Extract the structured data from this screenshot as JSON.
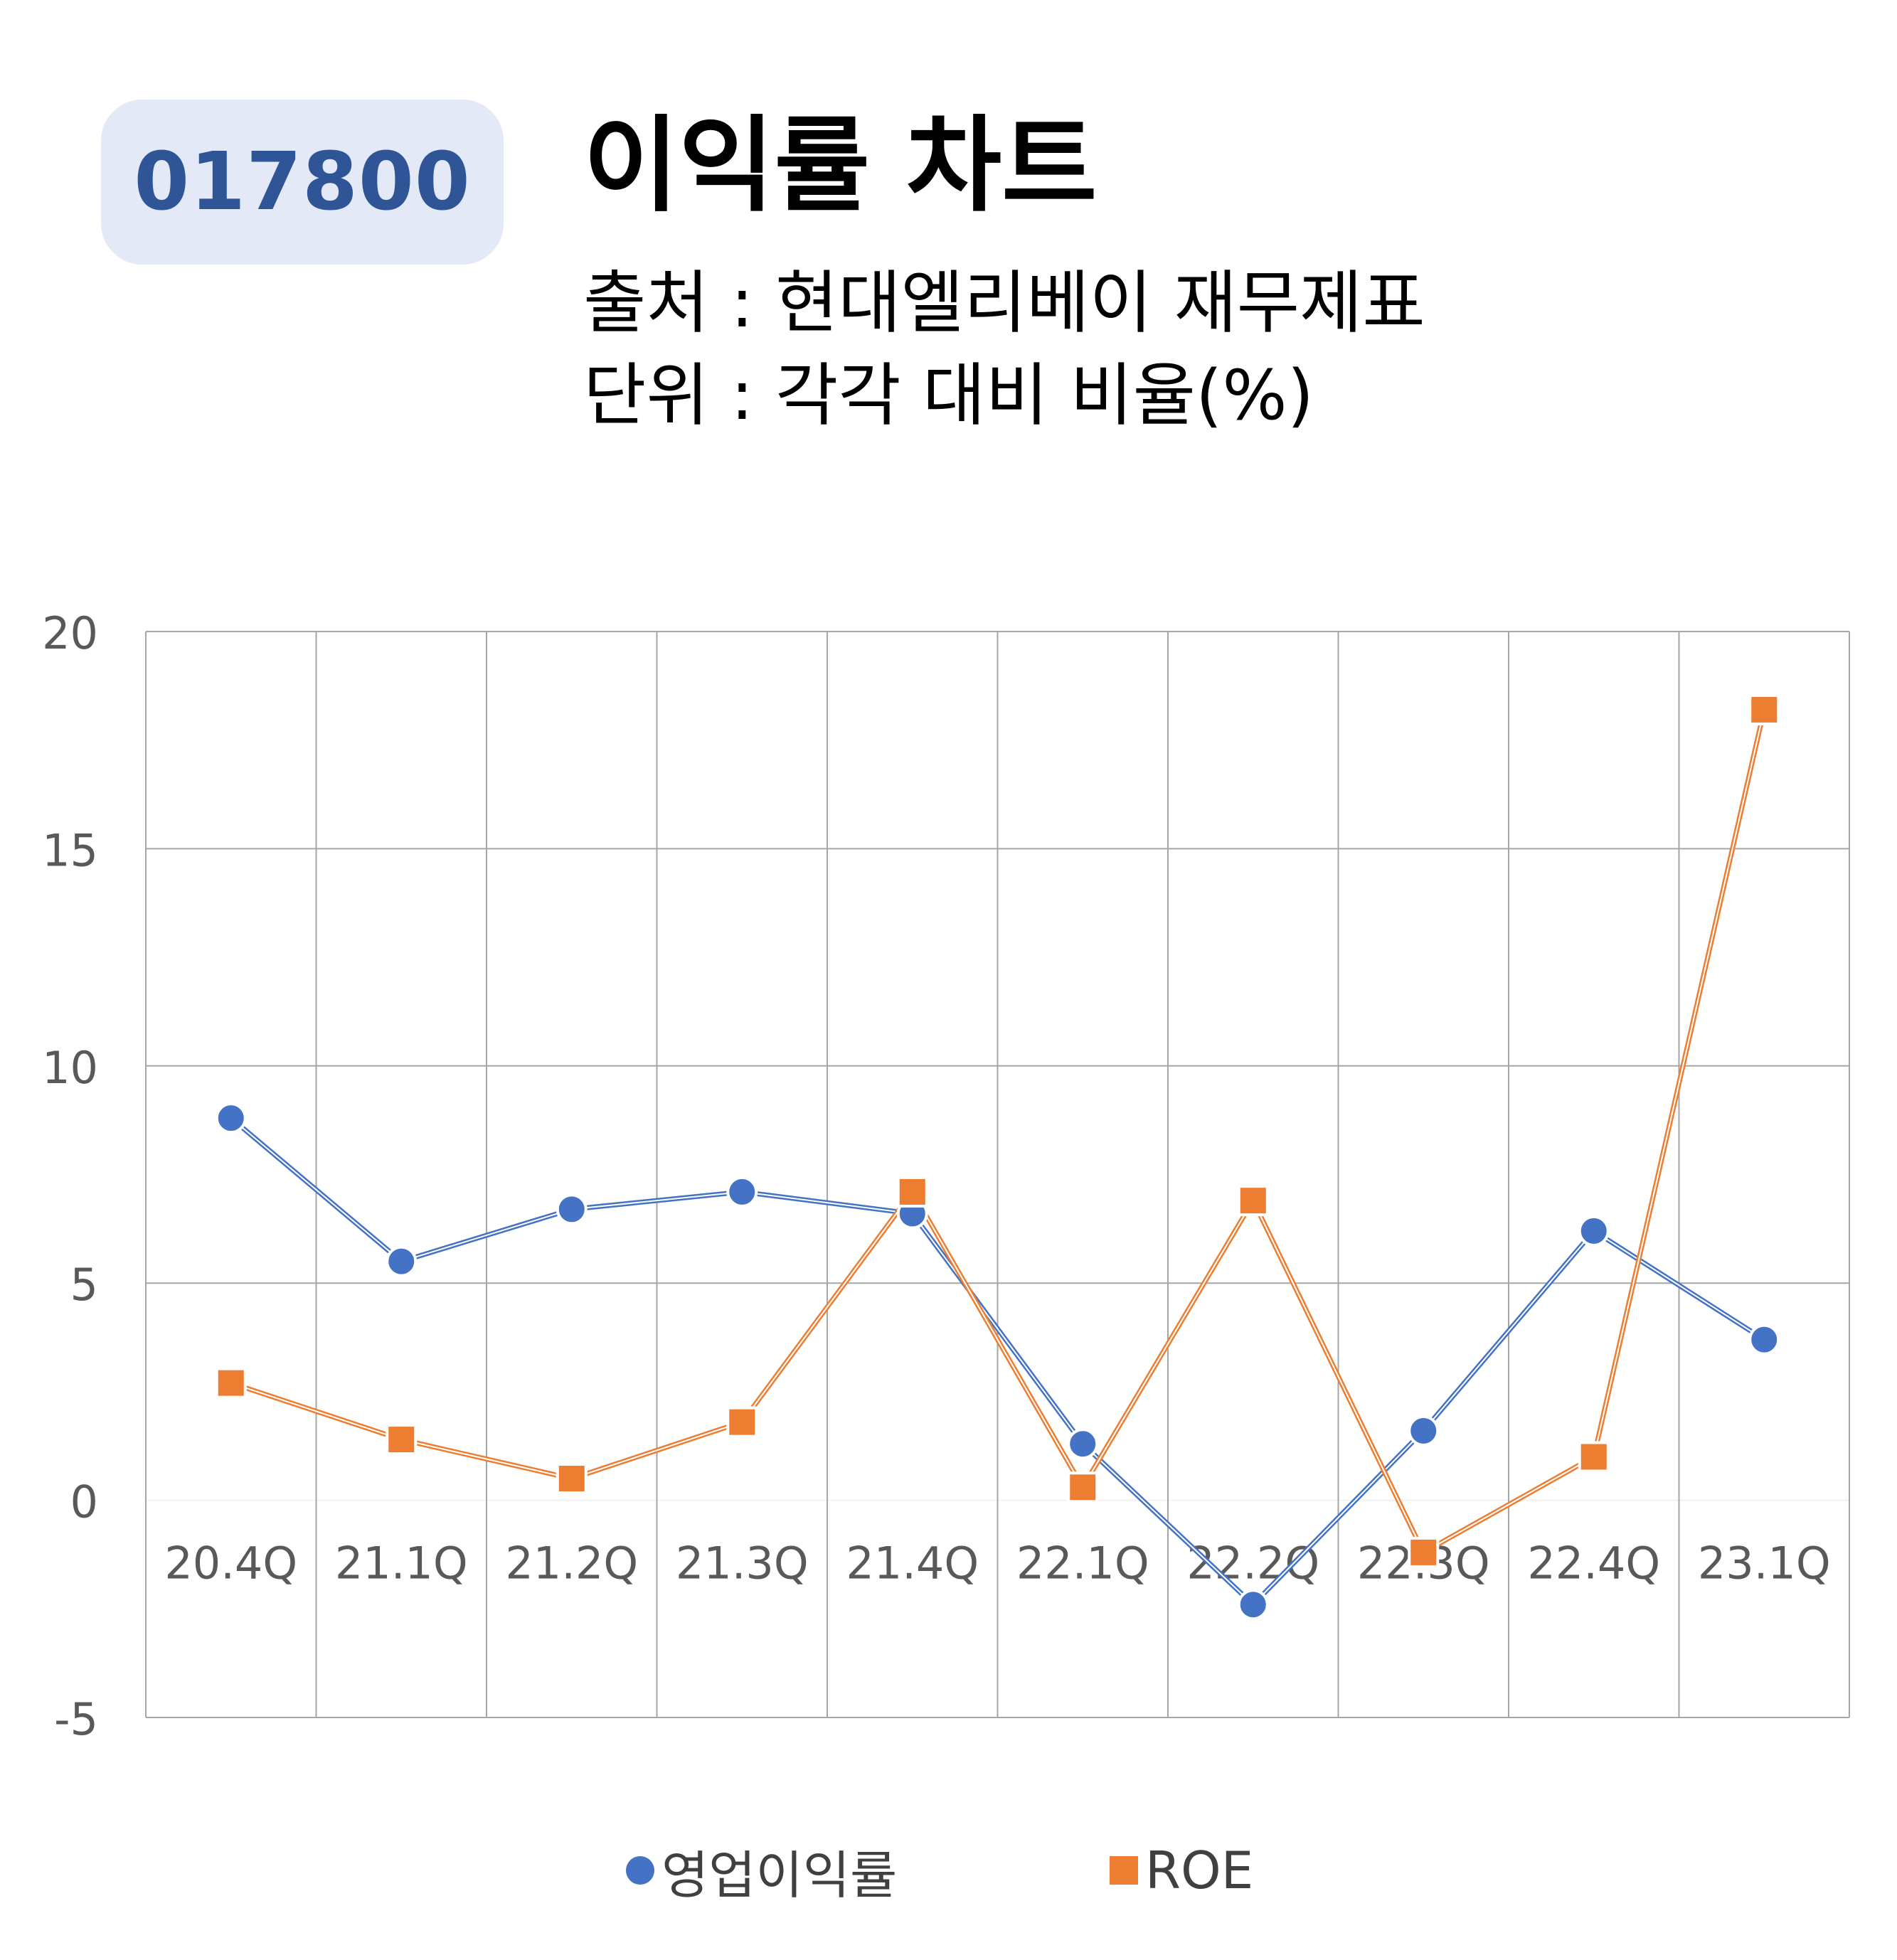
{
  "badge": {
    "ticker": "017800"
  },
  "header": {
    "title": "이익률 차트",
    "source": "출처 : 현대엘리베이 재무제표",
    "unit": "단위 : 각각 대비 비율(%)"
  },
  "chart_data": {
    "type": "line",
    "categories": [
      "20.4Q",
      "21.1Q",
      "21.2Q",
      "21.3Q",
      "21.4Q",
      "22.1Q",
      "22.2Q",
      "22.3Q",
      "22.4Q",
      "23.1Q"
    ],
    "series": [
      {
        "name": "영업이익률",
        "color": "#4472c4",
        "marker": "circle",
        "values": [
          8.8,
          5.5,
          6.7,
          7.1,
          6.6,
          1.3,
          -2.4,
          1.6,
          6.2,
          3.7
        ]
      },
      {
        "name": "ROE",
        "color": "#ed7d31",
        "marker": "square",
        "values": [
          2.7,
          1.4,
          0.5,
          1.8,
          7.1,
          0.3,
          6.9,
          -1.2,
          1.0,
          18.2
        ]
      }
    ],
    "ylim": [
      -5,
      20
    ],
    "yticks": [
      "20",
      "15",
      "10",
      "5",
      "0",
      "-5"
    ],
    "grid": true,
    "legend_position": "bottom"
  }
}
